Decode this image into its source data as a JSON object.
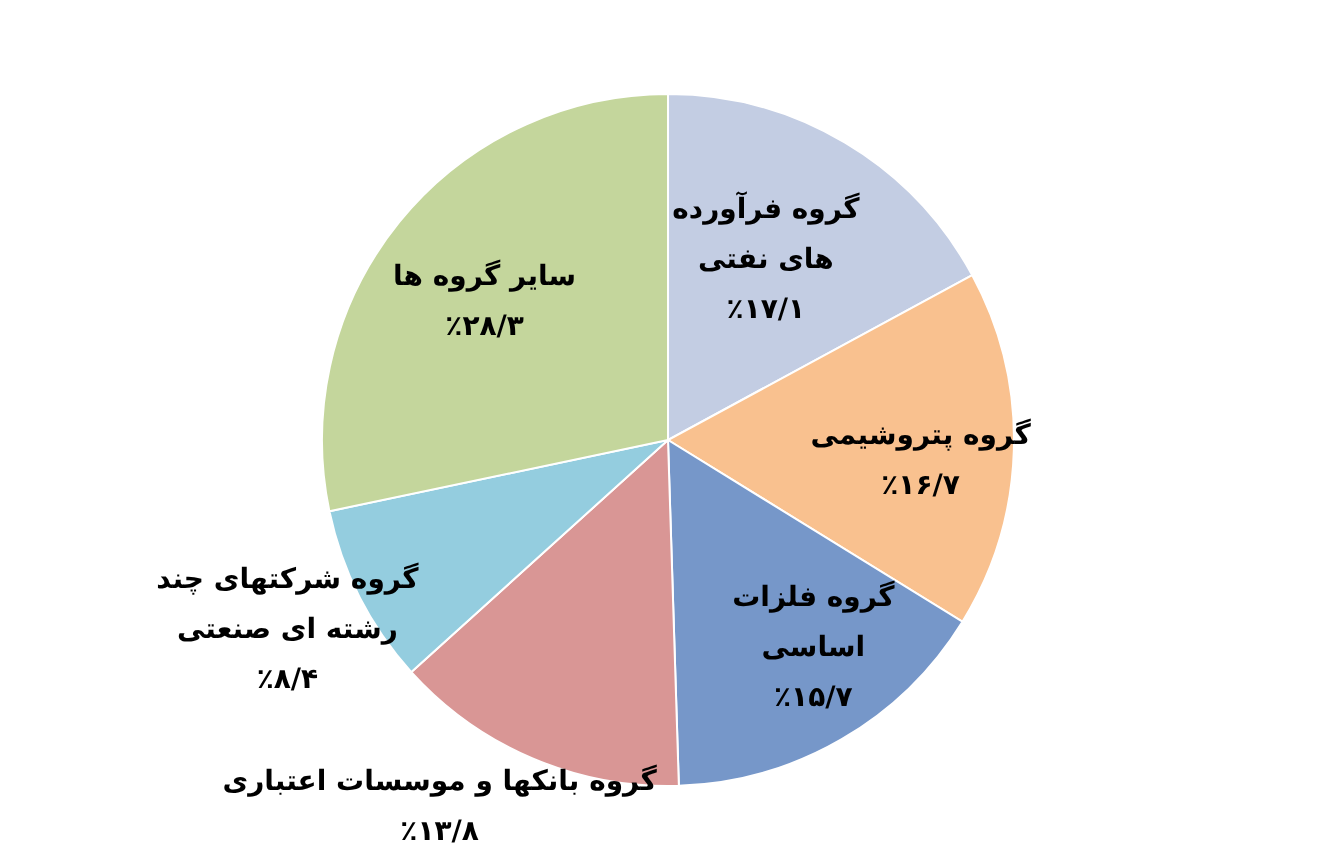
{
  "chart_data": {
    "type": "pie",
    "categories": [
      "گروه فرآورده های نفتی",
      "گروه پتروشیمی",
      "گروه فلزات اساسی",
      "گروه بانکها و موسسات اعتباری",
      "گروه شرکتهای چند رشته ای صنعتی",
      "سایر گروه ها"
    ],
    "values": [
      17.1,
      16.7,
      15.7,
      13.8,
      8.4,
      28.3
    ],
    "value_labels": [
      "٪۱۷/۱",
      "٪۱۶/۷",
      "٪۱۵/۷",
      "٪۱۳/۸",
      "٪۸/۴",
      "٪۲۸/۳"
    ],
    "colors": [
      "#c3cde3",
      "#f9c18f",
      "#7697c9",
      "#d99695",
      "#94cddf",
      "#c4d69c"
    ]
  }
}
